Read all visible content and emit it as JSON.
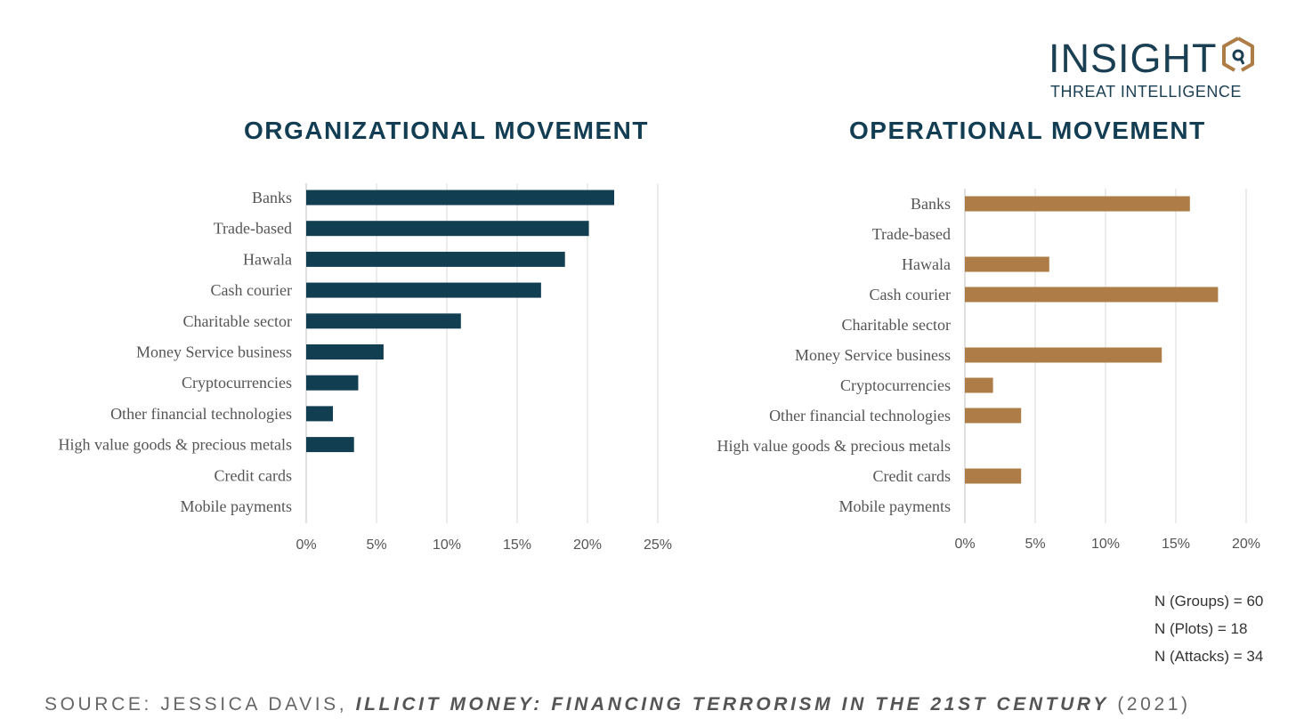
{
  "brand": {
    "name": "INSIGHT",
    "tagline": "THREAT INTELLIGENCE",
    "colors": {
      "navy": "#123e52",
      "bronze": "#ad7c47"
    }
  },
  "chart_data": [
    {
      "type": "bar",
      "orientation": "horizontal",
      "title": "ORGANIZATIONAL MOVEMENT",
      "categories": [
        "Banks",
        "Trade-based",
        "Hawala",
        "Cash courier",
        "Charitable sector",
        "Money Service business",
        "Cryptocurrencies",
        "Other financial technologies",
        "High value goods & precious metals",
        "Credit cards",
        "Mobile payments"
      ],
      "values": [
        21.9,
        20.1,
        18.4,
        16.7,
        11.0,
        5.5,
        3.7,
        1.9,
        3.4,
        0,
        0
      ],
      "xlim": [
        0,
        25
      ],
      "xticks": [
        0,
        5,
        10,
        15,
        20,
        25
      ],
      "tick_suffix": "%",
      "grid": true,
      "color": "#123e52"
    },
    {
      "type": "bar",
      "orientation": "horizontal",
      "title": "OPERATIONAL MOVEMENT",
      "categories": [
        "Banks",
        "Trade-based",
        "Hawala",
        "Cash courier",
        "Charitable sector",
        "Money Service business",
        "Cryptocurrencies",
        "Other financial technologies",
        "High value goods & precious metals",
        "Credit cards",
        "Mobile payments"
      ],
      "values": [
        16,
        0,
        6,
        18,
        0,
        14,
        2,
        4,
        0,
        4,
        0
      ],
      "xlim": [
        0,
        20
      ],
      "xticks": [
        0,
        5,
        10,
        15,
        20
      ],
      "tick_suffix": "%",
      "grid": true,
      "color": "#ad7c47"
    }
  ],
  "notes": {
    "groups": "N (Groups) = 60",
    "plots": "N (Plots) = 18",
    "attacks": "N (Attacks) = 34"
  },
  "source": {
    "prefix": "SOURCE: JESSICA DAVIS,",
    "title": "ILLICIT MONEY: FINANCING TERRORISM IN THE 21ST CENTURY",
    "year": "(2021)"
  }
}
